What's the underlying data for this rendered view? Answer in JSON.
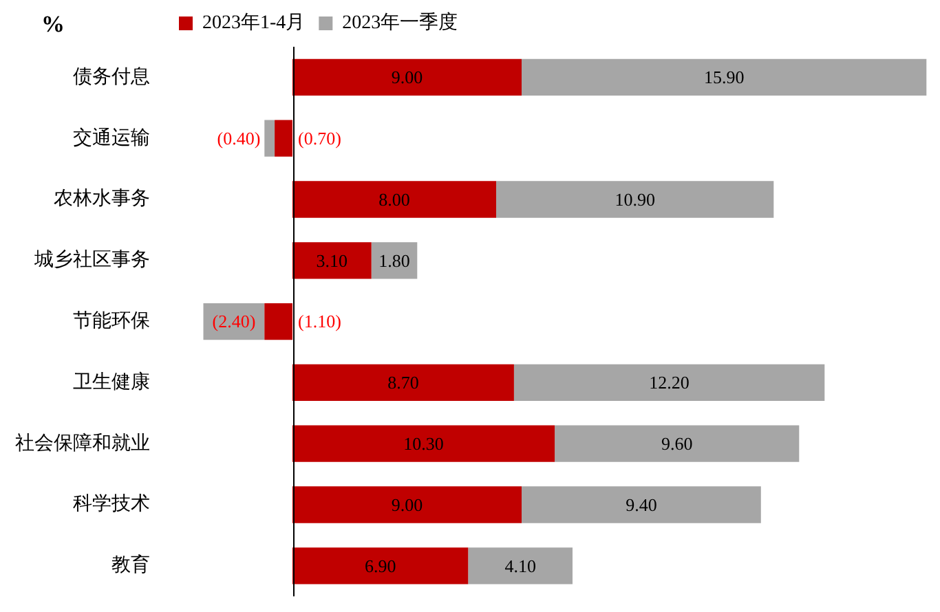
{
  "chart_data": {
    "type": "bar",
    "orientation": "horizontal",
    "stacked": true,
    "legend": "top",
    "tick_labels": "y",
    "annotations": [
      "%"
    ],
    "categories": [
      "债务付息",
      "交通运输",
      "农林水事务",
      "城乡社区事务",
      "节能环保",
      "卫生健康",
      "社会保障和就业",
      "科学技术",
      "教育"
    ],
    "series": [
      {
        "name": "2023年1-4月",
        "color": "#c00000",
        "values": [
          9.0,
          -0.7,
          8.0,
          3.1,
          -1.1,
          8.7,
          10.3,
          9.0,
          6.9
        ],
        "value_labels": [
          "9.00",
          "(0.70)",
          "8.00",
          "3.10",
          "(1.10)",
          "8.70",
          "10.30",
          "9.00",
          "6.90"
        ]
      },
      {
        "name": "2023年一季度",
        "color": "#a6a6a6",
        "values": [
          15.9,
          -0.4,
          10.9,
          1.8,
          -2.4,
          12.2,
          9.6,
          9.4,
          4.1
        ],
        "value_labels": [
          "15.90",
          "(0.40)",
          "10.90",
          "1.80",
          "(2.40)",
          "12.20",
          "9.60",
          "9.40",
          "4.10"
        ]
      }
    ]
  }
}
